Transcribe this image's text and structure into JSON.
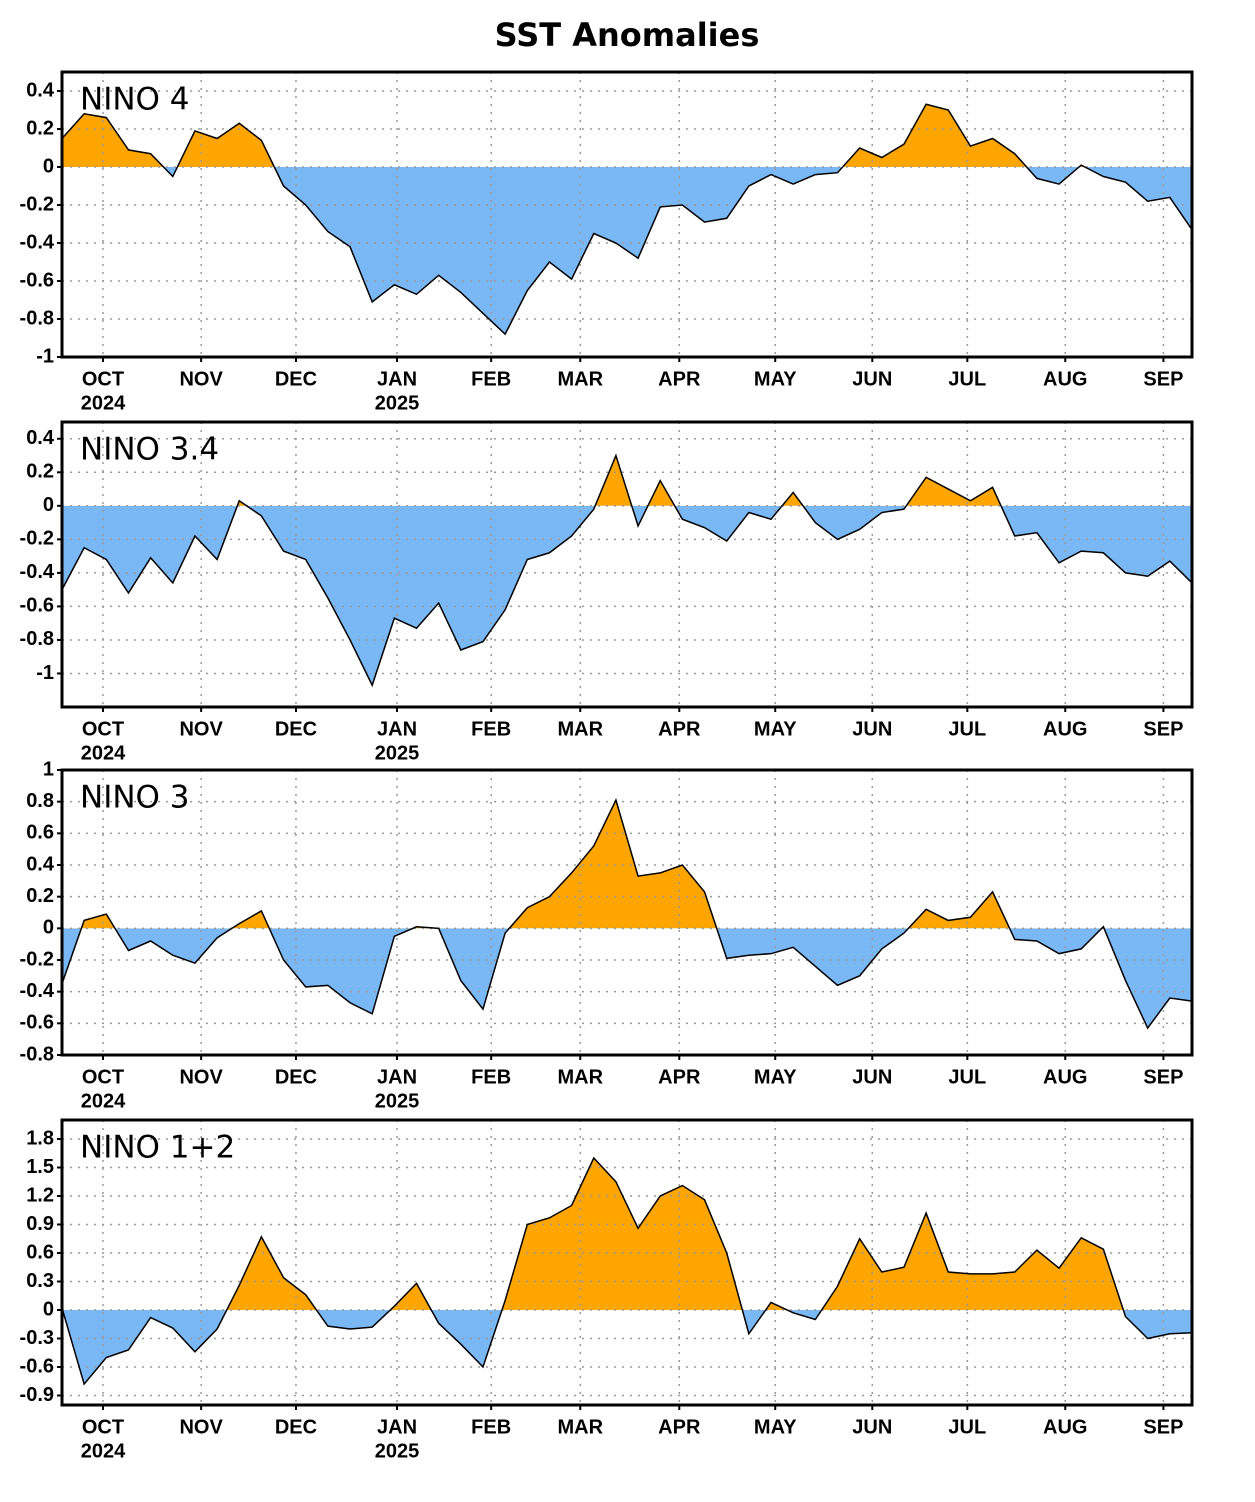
{
  "title": "SST Anomalies",
  "x_axis": {
    "xlim": [
      0,
      51
    ],
    "xticks": [
      {
        "value": 1.85,
        "label": "OCT"
      },
      {
        "value": 6.28,
        "label": "NOV"
      },
      {
        "value": 10.56,
        "label": "DEC"
      },
      {
        "value": 15.12,
        "label": "JAN"
      },
      {
        "value": 19.37,
        "label": "FEB"
      },
      {
        "value": 23.39,
        "label": "MAR"
      },
      {
        "value": 27.86,
        "label": "APR"
      },
      {
        "value": 32.19,
        "label": "MAY"
      },
      {
        "value": 36.57,
        "label": "JUN"
      },
      {
        "value": 40.86,
        "label": "JUL"
      },
      {
        "value": 45.28,
        "label": "AUG"
      },
      {
        "value": 49.71,
        "label": "SEP"
      }
    ],
    "year_ticks": [
      {
        "value": 1.85,
        "label": "2024"
      },
      {
        "value": 15.12,
        "label": "2025"
      }
    ]
  },
  "chart_data": [
    {
      "type": "area",
      "title": "NINO 4",
      "pos_color": "#ffa500",
      "neg_color": "#7ab8f5",
      "grid": true,
      "x": [
        0,
        1,
        2,
        3,
        4,
        5,
        6,
        7,
        8,
        9,
        10,
        11,
        12,
        13,
        14,
        15,
        16,
        17,
        18,
        19,
        20,
        21,
        22,
        23,
        24,
        25,
        26,
        27,
        28,
        29,
        30,
        31,
        32,
        33,
        34,
        35,
        36,
        37,
        38,
        39,
        40,
        41,
        42,
        43,
        44,
        45,
        46,
        47,
        48,
        49,
        50,
        51
      ],
      "values": [
        0.15,
        0.28,
        0.26,
        0.09,
        0.07,
        -0.05,
        0.19,
        0.15,
        0.23,
        0.14,
        -0.1,
        -0.2,
        -0.34,
        -0.42,
        -0.71,
        -0.62,
        -0.67,
        -0.57,
        -0.66,
        -0.77,
        -0.88,
        -0.65,
        -0.5,
        -0.59,
        -0.35,
        -0.4,
        -0.48,
        -0.21,
        -0.2,
        -0.29,
        -0.27,
        -0.1,
        -0.04,
        -0.09,
        -0.04,
        -0.03,
        0.1,
        0.05,
        0.12,
        0.33,
        0.3,
        0.11,
        0.15,
        0.07,
        -0.06,
        -0.09,
        0.01,
        -0.05,
        -0.08,
        -0.18,
        -0.16,
        -0.33
      ],
      "ylim": [
        -1,
        0.5
      ],
      "yticks": [
        0.4,
        0.2,
        0,
        -0.2,
        -0.4,
        -0.6,
        -0.8,
        -1
      ]
    },
    {
      "type": "area",
      "title": "NINO 3.4",
      "pos_color": "#ffa500",
      "neg_color": "#7ab8f5",
      "grid": true,
      "x": [
        0,
        1,
        2,
        3,
        4,
        5,
        6,
        7,
        8,
        9,
        10,
        11,
        12,
        13,
        14,
        15,
        16,
        17,
        18,
        19,
        20,
        21,
        22,
        23,
        24,
        25,
        26,
        27,
        28,
        29,
        30,
        31,
        32,
        33,
        34,
        35,
        36,
        37,
        38,
        39,
        40,
        41,
        42,
        43,
        44,
        45,
        46,
        47,
        48,
        49,
        50,
        51
      ],
      "values": [
        -0.5,
        -0.25,
        -0.32,
        -0.52,
        -0.31,
        -0.46,
        -0.18,
        -0.32,
        0.03,
        -0.06,
        -0.27,
        -0.32,
        -0.55,
        -0.8,
        -1.07,
        -0.67,
        -0.73,
        -0.58,
        -0.86,
        -0.81,
        -0.62,
        -0.32,
        -0.28,
        -0.18,
        -0.02,
        0.3,
        -0.12,
        0.15,
        -0.08,
        -0.13,
        -0.21,
        -0.04,
        -0.08,
        0.08,
        -0.1,
        -0.2,
        -0.14,
        -0.04,
        -0.02,
        0.17,
        0.1,
        0.03,
        0.11,
        -0.18,
        -0.16,
        -0.34,
        -0.27,
        -0.28,
        -0.4,
        -0.42,
        -0.33,
        -0.46
      ],
      "ylim": [
        -1.2,
        0.5
      ],
      "yticks": [
        0.4,
        0.2,
        0,
        -0.2,
        -0.4,
        -0.6,
        -0.8,
        -1
      ]
    },
    {
      "type": "area",
      "title": "NINO 3",
      "pos_color": "#ffa500",
      "neg_color": "#7ab8f5",
      "grid": true,
      "x": [
        0,
        1,
        2,
        3,
        4,
        5,
        6,
        7,
        8,
        9,
        10,
        11,
        12,
        13,
        14,
        15,
        16,
        17,
        18,
        19,
        20,
        21,
        22,
        23,
        24,
        25,
        26,
        27,
        28,
        29,
        30,
        31,
        32,
        33,
        34,
        35,
        36,
        37,
        38,
        39,
        40,
        41,
        42,
        43,
        44,
        45,
        46,
        47,
        48,
        49,
        50,
        51
      ],
      "values": [
        -0.35,
        0.05,
        0.09,
        -0.14,
        -0.08,
        -0.17,
        -0.22,
        -0.06,
        0.03,
        0.11,
        -0.2,
        -0.37,
        -0.36,
        -0.47,
        -0.54,
        -0.05,
        0.01,
        0,
        -0.33,
        -0.51,
        -0.03,
        0.13,
        0.2,
        0.35,
        0.52,
        0.81,
        0.33,
        0.35,
        0.4,
        0.23,
        -0.19,
        -0.17,
        -0.16,
        -0.12,
        -0.24,
        -0.36,
        -0.3,
        -0.13,
        -0.03,
        0.12,
        0.05,
        0.07,
        0.23,
        -0.07,
        -0.08,
        -0.16,
        -0.13,
        0.01,
        -0.33,
        -0.63,
        -0.44,
        -0.46
      ],
      "ylim": [
        -0.8,
        1
      ],
      "yticks": [
        1,
        0.8,
        0.6,
        0.4,
        0.2,
        0,
        -0.2,
        -0.4,
        -0.6,
        -0.8
      ]
    },
    {
      "type": "area",
      "title": "NINO 1+2",
      "pos_color": "#ffa500",
      "neg_color": "#7ab8f5",
      "grid": true,
      "x": [
        0,
        1,
        2,
        3,
        4,
        5,
        6,
        7,
        8,
        9,
        10,
        11,
        12,
        13,
        14,
        15,
        16,
        17,
        18,
        19,
        20,
        21,
        22,
        23,
        24,
        25,
        26,
        27,
        28,
        29,
        30,
        31,
        32,
        33,
        34,
        35,
        36,
        37,
        38,
        39,
        40,
        41,
        42,
        43,
        44,
        45,
        46,
        47,
        48,
        49,
        50,
        51
      ],
      "values": [
        0.02,
        -0.78,
        -0.5,
        -0.42,
        -0.08,
        -0.19,
        -0.44,
        -0.2,
        0.26,
        0.77,
        0.34,
        0.16,
        -0.17,
        -0.2,
        -0.18,
        0.04,
        0.28,
        -0.14,
        -0.36,
        -0.6,
        0.1,
        0.9,
        0.97,
        1.1,
        1.6,
        1.35,
        0.86,
        1.2,
        1.31,
        1.16,
        0.6,
        -0.25,
        0.08,
        -0.03,
        -0.1,
        0.25,
        0.75,
        0.4,
        0.45,
        1.02,
        0.4,
        0.38,
        0.38,
        0.4,
        0.63,
        0.44,
        0.76,
        0.64,
        -0.07,
        -0.3,
        -0.25,
        -0.24
      ],
      "ylim": [
        -1,
        2
      ],
      "yticks": [
        1.8,
        1.5,
        1.2,
        0.9,
        0.6,
        0.3,
        0,
        -0.3,
        -0.6,
        -0.9
      ]
    }
  ]
}
